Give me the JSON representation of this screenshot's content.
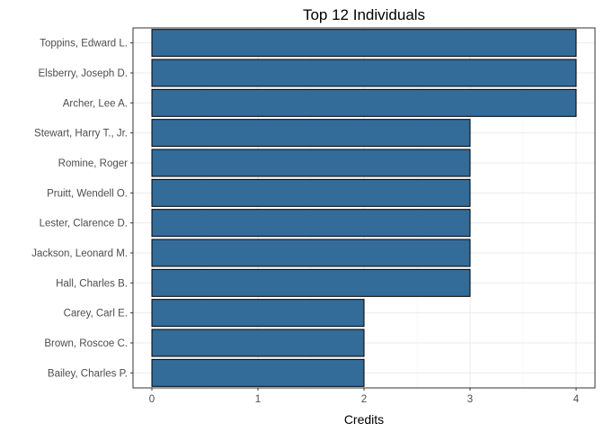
{
  "chart_data": {
    "type": "bar",
    "orientation": "horizontal",
    "title": "Top 12 Individuals",
    "xlabel": "Credits",
    "ylabel": "",
    "xlim": [
      0,
      4
    ],
    "xticks": [
      "0",
      "1",
      "2",
      "3",
      "4"
    ],
    "categories": [
      "Toppins, Edward L.",
      "Elsberry, Joseph D.",
      "Archer, Lee A.",
      "Stewart, Harry T., Jr.",
      "Romine, Roger",
      "Pruitt, Wendell O.",
      "Lester, Clarence D.",
      "Jackson, Leonard M.",
      "Hall, Charles B.",
      "Carey, Carl E.",
      "Brown, Roscoe C.",
      "Bailey, Charles P."
    ],
    "values": [
      4,
      4,
      4,
      3,
      3,
      3,
      3,
      3,
      3,
      2,
      2,
      2
    ],
    "bar_color": "#336b99",
    "bar_edge_color": "#000000",
    "grid": true,
    "legend": "none"
  }
}
